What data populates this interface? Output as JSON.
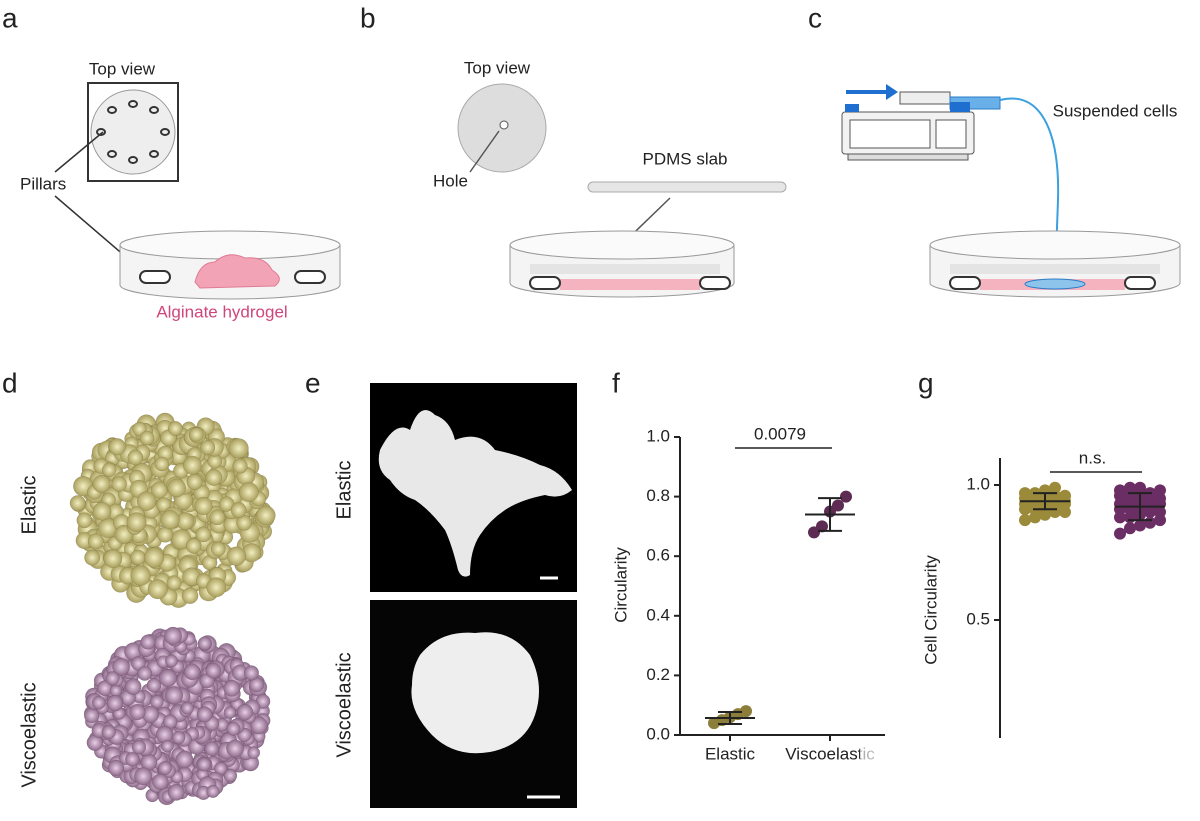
{
  "panel_labels": [
    "a",
    "b",
    "c",
    "d",
    "e",
    "f",
    "g"
  ],
  "panel_a": {
    "top_view": "Top view",
    "pillars": "Pillars",
    "hydrogel": "Alginate hydrogel"
  },
  "panel_b": {
    "top_view": "Top view",
    "hole": "Hole",
    "slab": "PDMS slab"
  },
  "panel_c": {
    "cells": "Suspended cells"
  },
  "panel_d": {
    "rows": [
      "Elastic",
      "Viscoelastic"
    ]
  },
  "panel_e": {
    "rows": [
      "Elastic",
      "Viscoelastic"
    ]
  },
  "chart_data": [
    {
      "type": "scatter",
      "ylabel": "Circularity",
      "significance": "0.0079",
      "categories": [
        "Elastic",
        "Viscoelastic"
      ],
      "colors": [
        "#8b7d3a",
        "#5e2b52"
      ],
      "values": [
        [
          0.04,
          0.05,
          0.06,
          0.07,
          0.08
        ],
        [
          0.68,
          0.7,
          0.75,
          0.77,
          0.8
        ]
      ],
      "means": [
        0.057,
        0.74
      ],
      "sds": [
        0.02,
        0.055
      ],
      "ylim": [
        0,
        1
      ],
      "yticks": [
        {
          "value": 0,
          "label": "0.0"
        },
        0.2,
        0.4,
        0.6,
        0.8,
        {
          "value": 1,
          "label": "1.0"
        }
      ]
    },
    {
      "type": "scatter",
      "ylabel": "Cell Circularity",
      "significance": "n.s.",
      "categories": [
        null,
        null
      ],
      "colors": [
        "#9a8a3a",
        "#6a2e64"
      ],
      "values": [
        [
          0.87,
          0.88,
          0.89,
          0.9,
          0.9,
          0.91,
          0.91,
          0.92,
          0.92,
          0.93,
          0.93,
          0.93,
          0.94,
          0.94,
          0.94,
          0.95,
          0.95,
          0.95,
          0.96,
          0.96,
          0.97,
          0.97,
          0.98,
          0.99
        ],
        [
          0.82,
          0.84,
          0.85,
          0.86,
          0.87,
          0.88,
          0.88,
          0.89,
          0.9,
          0.9,
          0.91,
          0.91,
          0.92,
          0.92,
          0.93,
          0.93,
          0.94,
          0.94,
          0.95,
          0.95,
          0.96,
          0.96,
          0.97,
          0.97,
          0.98,
          0.98,
          0.99,
          0.99
        ]
      ],
      "means": [
        0.94,
        0.92
      ],
      "sds": [
        0.03,
        0.05
      ],
      "ylim": [
        0,
        1.1
      ],
      "yticks": [
        0.5,
        {
          "value": 1,
          "label": "1.0"
        }
      ]
    }
  ]
}
